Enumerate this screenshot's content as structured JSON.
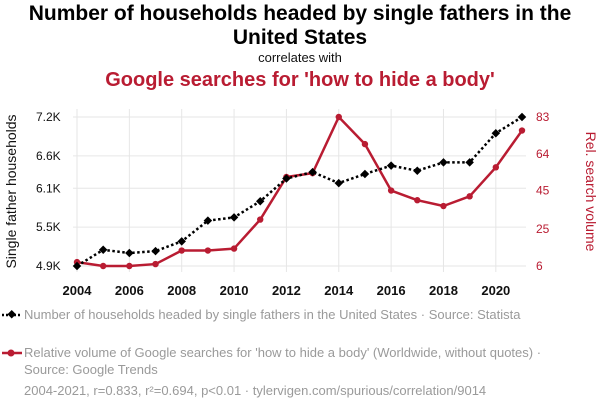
{
  "title": "Number of households headed by single fathers in the United States",
  "subtitle": "correlates with",
  "title2": "Google searches for 'how to hide a body'",
  "legend": [
    "Number of households headed by single fathers in the United States · Source: Statista",
    "Relative volume of Google searches for 'how to hide a body' (Worldwide, without quotes) · Source: Google Trends"
  ],
  "footer": "2004-2021, r=0.833, r²=0.694, p<0.01 · tylervigen.com/spurious/correlation/9014",
  "colors": {
    "series1": "#000000",
    "series2": "#b91c32"
  },
  "chart_data": {
    "type": "line",
    "x": [
      2004,
      2005,
      2006,
      2007,
      2008,
      2009,
      2010,
      2011,
      2012,
      2013,
      2014,
      2015,
      2016,
      2017,
      2018,
      2019,
      2020,
      2021
    ],
    "xticks": [
      2004,
      2006,
      2008,
      2010,
      2012,
      2014,
      2016,
      2018,
      2020
    ],
    "xlabel": "",
    "series": [
      {
        "name": "Single father households",
        "axis": "left",
        "style": "dotted-diamond",
        "values": [
          4.9,
          5.15,
          5.1,
          5.13,
          5.28,
          5.6,
          5.65,
          5.9,
          6.25,
          6.35,
          6.18,
          6.32,
          6.45,
          6.37,
          6.5,
          6.5,
          6.95,
          7.2
        ]
      },
      {
        "name": "Rel. search volume",
        "axis": "right",
        "style": "solid",
        "values": [
          8,
          6,
          6,
          7,
          14,
          14,
          15,
          30,
          52,
          54,
          83,
          69,
          45,
          40,
          37,
          42,
          57,
          76
        ]
      }
    ],
    "y_left": {
      "label": "Single father households",
      "ticks": [
        4.9,
        5.5,
        6.1,
        6.6,
        7.2
      ],
      "tick_labels": [
        "4.9K",
        "5.5K",
        "6.1K",
        "6.6K",
        "7.2K"
      ],
      "lim": [
        4.9,
        7.2
      ]
    },
    "y_right": {
      "label": "Rel. search volume",
      "ticks": [
        6,
        25,
        45,
        64,
        83
      ],
      "tick_labels": [
        "6",
        "25",
        "45",
        "64",
        "83"
      ],
      "lim": [
        6,
        83
      ]
    }
  }
}
